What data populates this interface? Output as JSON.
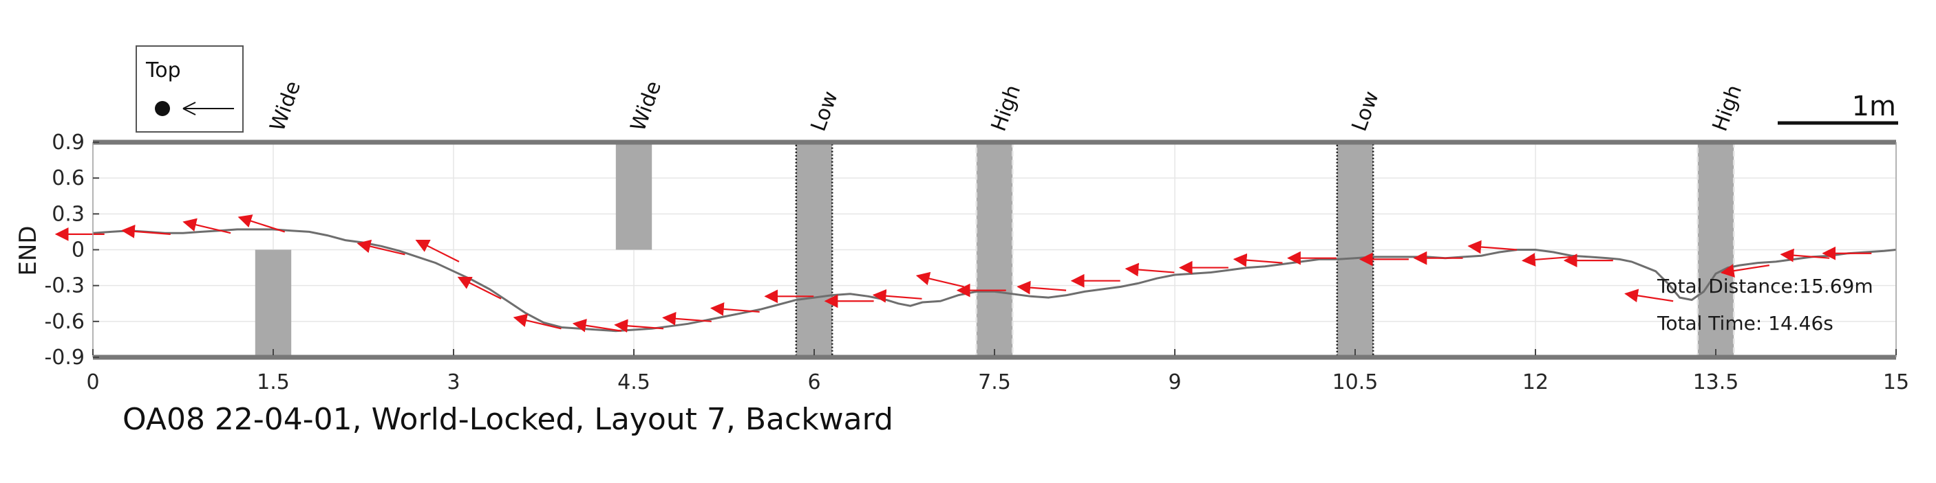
{
  "chart_data": {
    "type": "line",
    "title": "OA08 22-04-01, World-Locked, Layout 7, Backward",
    "xlabel": "",
    "ylabel": "END",
    "xlim": [
      0,
      15
    ],
    "ylim": [
      -0.9,
      0.9
    ],
    "xticks": [
      "0",
      "1.5",
      "3",
      "4.5",
      "6",
      "7.5",
      "9",
      "10.5",
      "12",
      "13.5",
      "15"
    ],
    "yticks": [
      "0.9",
      "0.6",
      "0.3",
      "0",
      "-0.3",
      "-0.6",
      "-0.9"
    ],
    "grid": true,
    "legend": {
      "label": "Top",
      "position": "top-left"
    },
    "scale_bar_label": "1m",
    "annotations": {
      "total_distance": "Total Distance:15.69m",
      "total_time": "Total Time: 14.46s"
    },
    "obstacles": [
      {
        "label": "Wide",
        "x_start": 1.35,
        "x_end": 1.65,
        "y_start": -0.9,
        "y_end": 0.0,
        "style": "plain"
      },
      {
        "label": "Wide",
        "x_start": 4.35,
        "x_end": 4.65,
        "y_start": 0.0,
        "y_end": 0.9,
        "style": "plain"
      },
      {
        "label": "Low",
        "x_start": 5.85,
        "x_end": 6.15,
        "y_start": -0.9,
        "y_end": 0.9,
        "style": "dotted"
      },
      {
        "label": "High",
        "x_start": 7.35,
        "x_end": 7.65,
        "y_start": -0.9,
        "y_end": 0.9,
        "style": "dashed"
      },
      {
        "label": "Low",
        "x_start": 10.35,
        "x_end": 10.65,
        "y_start": -0.9,
        "y_end": 0.9,
        "style": "dotted"
      },
      {
        "label": "High",
        "x_start": 13.35,
        "x_end": 13.65,
        "y_start": -0.9,
        "y_end": 0.9,
        "style": "dashed"
      }
    ],
    "path": {
      "x": [
        15.0,
        14.9,
        14.75,
        14.6,
        14.45,
        14.3,
        14.15,
        14.0,
        13.85,
        13.7,
        13.6,
        13.5,
        13.4,
        13.3,
        13.2,
        13.1,
        13.0,
        12.9,
        12.8,
        12.7,
        12.6,
        12.45,
        12.3,
        12.15,
        12.0,
        11.85,
        11.7,
        11.55,
        11.4,
        11.25,
        11.1,
        10.95,
        10.8,
        10.65,
        10.5,
        10.35,
        10.2,
        10.05,
        9.9,
        9.75,
        9.6,
        9.45,
        9.3,
        9.15,
        9.0,
        8.85,
        8.7,
        8.55,
        8.4,
        8.25,
        8.1,
        7.95,
        7.8,
        7.65,
        7.5,
        7.35,
        7.2,
        7.05,
        6.9,
        6.8,
        6.7,
        6.6,
        6.45,
        6.3,
        6.15,
        6.0,
        5.85,
        5.7,
        5.55,
        5.4,
        5.25,
        5.1,
        4.95,
        4.8,
        4.65,
        4.5,
        4.35,
        4.2,
        4.05,
        3.9,
        3.75,
        3.6,
        3.45,
        3.3,
        3.15,
        3.0,
        2.85,
        2.7,
        2.55,
        2.4,
        2.25,
        2.1,
        1.95,
        1.8,
        1.65,
        1.5,
        1.35,
        1.2,
        1.05,
        0.9,
        0.75,
        0.6,
        0.45,
        0.3,
        0.15,
        0.0
      ],
      "y": [
        0.0,
        -0.01,
        -0.02,
        -0.03,
        -0.05,
        -0.06,
        -0.08,
        -0.1,
        -0.11,
        -0.13,
        -0.15,
        -0.2,
        -0.35,
        -0.42,
        -0.4,
        -0.28,
        -0.18,
        -0.14,
        -0.1,
        -0.08,
        -0.07,
        -0.06,
        -0.05,
        -0.02,
        0.0,
        0.0,
        -0.02,
        -0.05,
        -0.06,
        -0.07,
        -0.06,
        -0.06,
        -0.06,
        -0.06,
        -0.07,
        -0.08,
        -0.08,
        -0.1,
        -0.12,
        -0.14,
        -0.15,
        -0.17,
        -0.19,
        -0.2,
        -0.21,
        -0.24,
        -0.28,
        -0.31,
        -0.33,
        -0.35,
        -0.38,
        -0.4,
        -0.39,
        -0.37,
        -0.35,
        -0.35,
        -0.38,
        -0.43,
        -0.44,
        -0.47,
        -0.45,
        -0.42,
        -0.39,
        -0.37,
        -0.38,
        -0.4,
        -0.42,
        -0.46,
        -0.5,
        -0.53,
        -0.56,
        -0.59,
        -0.62,
        -0.64,
        -0.66,
        -0.67,
        -0.68,
        -0.67,
        -0.66,
        -0.65,
        -0.61,
        -0.53,
        -0.43,
        -0.33,
        -0.25,
        -0.18,
        -0.11,
        -0.06,
        -0.01,
        0.03,
        0.06,
        0.08,
        0.12,
        0.15,
        0.16,
        0.17,
        0.17,
        0.17,
        0.16,
        0.15,
        0.14,
        0.14,
        0.15,
        0.16,
        0.15,
        0.14
      ]
    },
    "heading_arrows": {
      "x": [
        14.75,
        14.4,
        13.9,
        13.1,
        12.6,
        12.25,
        11.8,
        11.35,
        10.9,
        10.3,
        9.85,
        9.4,
        8.95,
        8.5,
        8.05,
        7.55,
        7.2,
        6.85,
        6.45,
        5.95,
        5.5,
        5.1,
        4.7,
        4.35,
        3.85,
        3.35,
        3.0,
        2.55,
        1.55,
        1.1,
        0.6,
        0.05
      ],
      "y": [
        -0.03,
        -0.07,
        -0.13,
        -0.43,
        -0.09,
        -0.06,
        0.0,
        -0.07,
        -0.08,
        -0.07,
        -0.11,
        -0.15,
        -0.19,
        -0.26,
        -0.34,
        -0.34,
        -0.31,
        -0.41,
        -0.43,
        -0.39,
        -0.52,
        -0.6,
        -0.66,
        -0.68,
        -0.66,
        -0.41,
        -0.1,
        -0.04,
        0.15,
        0.14,
        0.13,
        0.13
      ],
      "angle_deg": [
        0,
        5,
        -10,
        10,
        0,
        -5,
        5,
        0,
        0,
        0,
        5,
        0,
        5,
        0,
        5,
        0,
        15,
        5,
        0,
        0,
        5,
        5,
        5,
        10,
        15,
        30,
        30,
        15,
        20,
        15,
        5,
        0
      ]
    },
    "colors": {
      "path": "#6e6e6e",
      "arrow": "#e8141b",
      "obstacle_fill": "#a9a9a9",
      "frame": "#787878",
      "grid": "#e6e6e6"
    }
  }
}
